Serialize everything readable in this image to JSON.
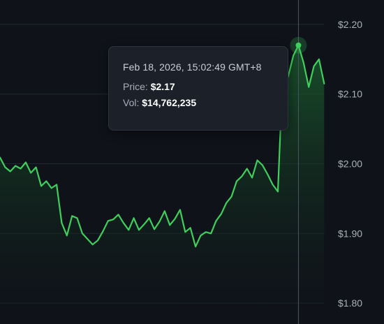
{
  "colors": {
    "background": "#0f1219",
    "line": "#3ecf5c",
    "area_top": "#1a5a2c",
    "area_bottom": "#0f1219",
    "gridline": "#222833",
    "crosshair": "#4d5563",
    "tick_text": "#aab0bb"
  },
  "tooltip": {
    "time": "Feb 18, 2026, 15:02:49 GMT+8",
    "price_label": "Price:",
    "price_value": "$2.17",
    "vol_label": "Vol:",
    "vol_value": "$14,762,235"
  },
  "chart_data": {
    "type": "area",
    "title": "",
    "xlabel": "",
    "ylabel": "",
    "ylim": [
      1.77,
      2.235
    ],
    "y_ticks": [
      "$2.20",
      "$2.10",
      "$2.00",
      "$1.90",
      "$1.80"
    ],
    "y_tick_values": [
      2.2,
      2.1,
      2.0,
      1.9,
      1.8
    ],
    "grid": true,
    "highlighted_point": {
      "index": 58,
      "price": 2.17,
      "volume": 14762235,
      "time": "Feb 18, 2026, 15:02:49 GMT+8"
    },
    "series": [
      {
        "values": [
          2.009,
          1.995,
          1.989,
          1.997,
          1.993,
          2.002,
          1.987,
          1.995,
          1.968,
          1.975,
          1.965,
          1.97,
          1.915,
          1.897,
          1.925,
          1.922,
          1.9,
          1.892,
          1.884,
          1.89,
          1.903,
          1.918,
          1.92,
          1.927,
          1.915,
          1.905,
          1.922,
          1.905,
          1.913,
          1.922,
          1.906,
          1.917,
          1.932,
          1.912,
          1.921,
          1.934,
          1.902,
          1.908,
          1.881,
          1.897,
          1.902,
          1.9,
          1.918,
          1.928,
          1.944,
          1.953,
          1.975,
          1.982,
          1.993,
          1.98,
          2.005,
          1.998,
          1.985,
          1.97,
          1.96,
          2.14,
          2.125,
          2.155,
          2.17,
          2.145,
          2.11,
          2.14,
          2.15,
          2.115
        ]
      }
    ]
  }
}
